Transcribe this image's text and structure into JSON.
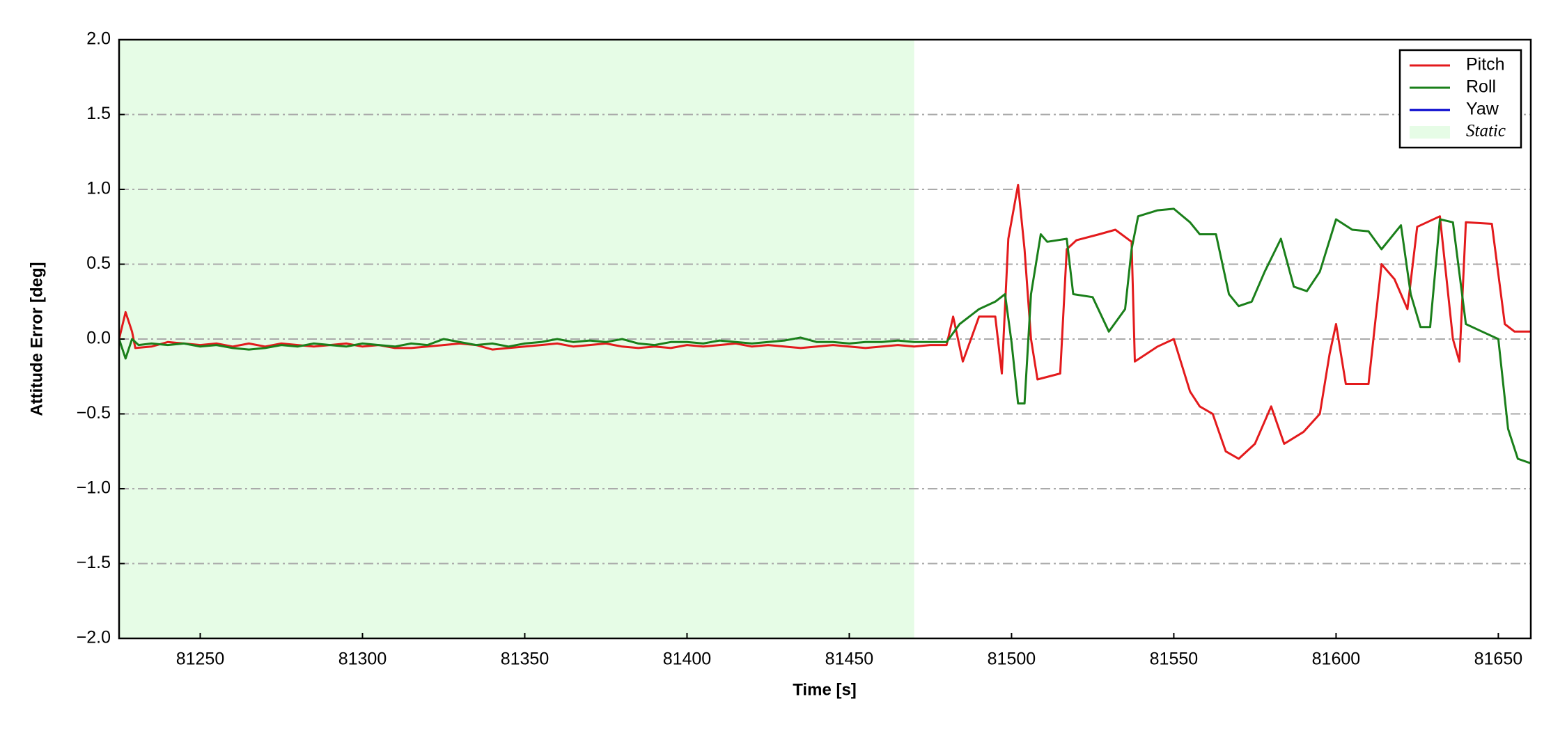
{
  "chart_data": {
    "type": "line",
    "xlabel": "Time [s]",
    "ylabel": "Attitude Error [deg]",
    "xlim": [
      81225,
      81660
    ],
    "ylim": [
      -2,
      2
    ],
    "xticks": [
      81250,
      81300,
      81350,
      81400,
      81450,
      81500,
      81550,
      81600,
      81650
    ],
    "yticks": [
      {
        "value": -2,
        "label": "−2.0"
      },
      {
        "value": -1.5,
        "label": "−1.5"
      },
      {
        "value": -1,
        "label": "−1.0"
      },
      {
        "value": -0.5,
        "label": "−0.5"
      },
      {
        "value": 0,
        "label": "0.0"
      },
      0.5,
      {
        "value": 1,
        "label": "1.0"
      },
      1.5,
      {
        "value": 2,
        "label": "2.0"
      }
    ],
    "grid": true,
    "legend": "upper right",
    "shaded_span": {
      "name": "Static",
      "range": [
        81225,
        81470
      ],
      "color": "#e6fce6"
    },
    "series": [
      {
        "name": "Pitch",
        "color": "#e31a1c",
        "x": [
          81225,
          81227,
          81229,
          81230,
          81235,
          81240,
          81245,
          81250,
          81255,
          81260,
          81265,
          81270,
          81275,
          81280,
          81285,
          81290,
          81295,
          81300,
          81305,
          81310,
          81315,
          81320,
          81325,
          81330,
          81335,
          81340,
          81345,
          81350,
          81355,
          81360,
          81365,
          81370,
          81375,
          81380,
          81385,
          81390,
          81395,
          81400,
          81405,
          81410,
          81415,
          81420,
          81425,
          81430,
          81435,
          81440,
          81445,
          81450,
          81455,
          81460,
          81465,
          81470,
          81475,
          81480,
          81482,
          81485,
          81490,
          81495,
          81497,
          81499,
          81502,
          81504,
          81506,
          81508,
          81515,
          81517,
          81520,
          81527,
          81532,
          81537,
          81538,
          81545,
          81550,
          81555,
          81558,
          81562,
          81566,
          81570,
          81575,
          81580,
          81584,
          81590,
          81595,
          81598,
          81600,
          81603,
          81610,
          81614,
          81618,
          81622,
          81625,
          81632,
          81636,
          81638,
          81640,
          81648,
          81652,
          81655,
          81660
        ],
        "values": [
          0.0,
          0.18,
          0.05,
          -0.06,
          -0.05,
          -0.02,
          -0.03,
          -0.04,
          -0.03,
          -0.05,
          -0.03,
          -0.05,
          -0.03,
          -0.04,
          -0.05,
          -0.04,
          -0.03,
          -0.05,
          -0.04,
          -0.06,
          -0.06,
          -0.05,
          -0.04,
          -0.03,
          -0.04,
          -0.07,
          -0.06,
          -0.05,
          -0.04,
          -0.03,
          -0.05,
          -0.04,
          -0.03,
          -0.05,
          -0.06,
          -0.05,
          -0.06,
          -0.04,
          -0.05,
          -0.04,
          -0.03,
          -0.05,
          -0.04,
          -0.05,
          -0.06,
          -0.05,
          -0.04,
          -0.05,
          -0.06,
          -0.05,
          -0.04,
          -0.05,
          -0.04,
          -0.04,
          0.15,
          -0.15,
          0.15,
          0.15,
          -0.23,
          0.67,
          1.03,
          0.6,
          0.0,
          -0.27,
          -0.23,
          0.6,
          0.66,
          0.7,
          0.73,
          0.65,
          -0.15,
          -0.05,
          0.0,
          -0.35,
          -0.45,
          -0.5,
          -0.75,
          -0.8,
          -0.7,
          -0.45,
          -0.7,
          -0.62,
          -0.5,
          -0.1,
          0.1,
          -0.3,
          -0.3,
          0.5,
          0.4,
          0.2,
          0.75,
          0.82,
          0.0,
          -0.15,
          0.78,
          0.77,
          0.1,
          0.05,
          0.05
        ]
      },
      {
        "name": "Roll",
        "color": "#1a7f1a",
        "x": [
          81225,
          81227,
          81229,
          81231,
          81235,
          81240,
          81245,
          81250,
          81255,
          81260,
          81265,
          81270,
          81275,
          81280,
          81285,
          81290,
          81295,
          81300,
          81305,
          81310,
          81315,
          81320,
          81325,
          81330,
          81335,
          81340,
          81345,
          81350,
          81355,
          81360,
          81365,
          81370,
          81375,
          81380,
          81385,
          81390,
          81395,
          81400,
          81405,
          81410,
          81415,
          81420,
          81425,
          81430,
          81435,
          81440,
          81445,
          81450,
          81455,
          81460,
          81465,
          81470,
          81475,
          81480,
          81484,
          81490,
          81495,
          81498,
          81500,
          81502,
          81504,
          81506,
          81509,
          81511,
          81517,
          81519,
          81525,
          81530,
          81535,
          81537,
          81539,
          81545,
          81550,
          81555,
          81558,
          81563,
          81567,
          81570,
          81574,
          81578,
          81583,
          81587,
          81591,
          81595,
          81600,
          81605,
          81610,
          81614,
          81620,
          81623,
          81626,
          81629,
          81632,
          81636,
          81640,
          81645,
          81650,
          81653,
          81656,
          81660
        ],
        "values": [
          0.0,
          -0.13,
          0.0,
          -0.04,
          -0.03,
          -0.04,
          -0.03,
          -0.05,
          -0.04,
          -0.06,
          -0.07,
          -0.06,
          -0.04,
          -0.05,
          -0.03,
          -0.04,
          -0.05,
          -0.03,
          -0.04,
          -0.05,
          -0.03,
          -0.04,
          0.0,
          -0.02,
          -0.04,
          -0.03,
          -0.05,
          -0.03,
          -0.02,
          0.0,
          -0.02,
          -0.01,
          -0.02,
          0.0,
          -0.03,
          -0.04,
          -0.02,
          -0.02,
          -0.03,
          -0.01,
          -0.02,
          -0.03,
          -0.02,
          -0.01,
          0.01,
          -0.02,
          -0.02,
          -0.03,
          -0.02,
          -0.02,
          -0.01,
          -0.02,
          -0.02,
          -0.02,
          0.1,
          0.2,
          0.25,
          0.3,
          -0.02,
          -0.43,
          -0.43,
          0.3,
          0.7,
          0.65,
          0.67,
          0.3,
          0.28,
          0.05,
          0.2,
          0.6,
          0.82,
          0.86,
          0.87,
          0.78,
          0.7,
          0.7,
          0.3,
          0.22,
          0.25,
          0.45,
          0.67,
          0.35,
          0.32,
          0.45,
          0.8,
          0.73,
          0.72,
          0.6,
          0.76,
          0.3,
          0.08,
          0.08,
          0.8,
          0.78,
          0.1,
          0.05,
          0.0,
          -0.6,
          -0.8,
          -0.83
        ]
      },
      {
        "name": "Yaw",
        "color": "#0000cc"
      }
    ]
  }
}
